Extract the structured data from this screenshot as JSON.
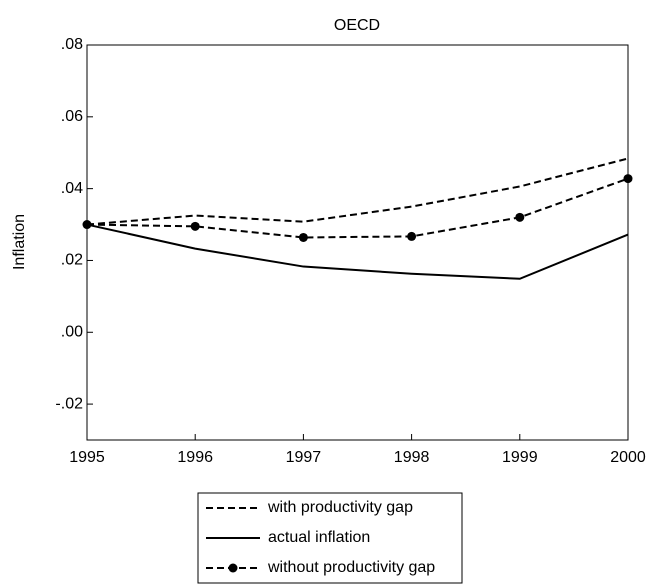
{
  "chart_data": {
    "type": "line",
    "title": "OECD",
    "y_label": "Inflation",
    "x": [
      1995,
      1996,
      1997,
      1998,
      1999,
      2000
    ],
    "series": [
      {
        "name": "with productivity gap",
        "color": "#000000",
        "dash": "dashed",
        "marker": false,
        "values": [
          0.03,
          0.0325,
          0.0308,
          0.035,
          0.0406,
          0.0484
        ]
      },
      {
        "name": "actual inflation",
        "color": "#000000",
        "dash": "solid",
        "marker": false,
        "values": [
          0.03,
          0.0233,
          0.0183,
          0.0163,
          0.0149,
          0.0272
        ]
      },
      {
        "name": "without productivity gap",
        "color": "#000000",
        "dash": "dashed",
        "marker": true,
        "values": [
          0.03,
          0.0295,
          0.0264,
          0.0267,
          0.032,
          0.0428
        ]
      }
    ],
    "xlim": [
      1995,
      2000
    ],
    "xticks": [
      1995,
      1996,
      1997,
      1998,
      1999,
      2000
    ],
    "ylim": [
      -0.03,
      0.08
    ],
    "yticks": [
      {
        "value": -0.02,
        "label": "-.02"
      },
      {
        "value": 0,
        "label": ".00"
      },
      {
        "value": 0.02,
        "label": ".02"
      },
      {
        "value": 0.04,
        "label": ".04"
      },
      {
        "value": 0.06,
        "label": ".06"
      },
      {
        "value": 0.08,
        "label": ".08"
      }
    ],
    "grid": false,
    "legend": "bottom"
  }
}
